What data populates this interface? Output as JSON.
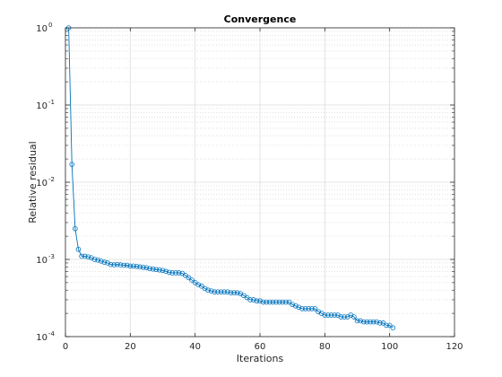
{
  "chart_data": {
    "type": "line",
    "title": "Convergence",
    "xlabel": "Iterations",
    "ylabel": "Relative residual",
    "xlim": [
      0,
      120
    ],
    "ylim": [
      0.0001,
      1
    ],
    "yscale": "log",
    "grid": true,
    "minor_grid": true,
    "marker": "circle",
    "line_color": "#0072BD",
    "x_ticks": [
      "0",
      "20",
      "40",
      "60",
      "80",
      "100",
      "120"
    ],
    "y_ticks": [
      {
        "base": "10",
        "exp": "-4"
      },
      {
        "base": "10",
        "exp": "-3"
      },
      {
        "base": "10",
        "exp": "-2"
      },
      {
        "base": "10",
        "exp": "-1"
      },
      {
        "base": "10",
        "exp": "0"
      }
    ],
    "series": [
      {
        "x": [
          1,
          2,
          3,
          4,
          5,
          6,
          7,
          8,
          9,
          10,
          11,
          12,
          13,
          14,
          15,
          16,
          17,
          18,
          19,
          20,
          21,
          22,
          23,
          24,
          25,
          26,
          27,
          28,
          29,
          30,
          31,
          32,
          33,
          34,
          35,
          36,
          37,
          38,
          39,
          40,
          41,
          42,
          43,
          44,
          45,
          46,
          47,
          48,
          49,
          50,
          51,
          52,
          53,
          54,
          55,
          56,
          57,
          58,
          59,
          60,
          61,
          62,
          63,
          64,
          65,
          66,
          67,
          68,
          69,
          70,
          71,
          72,
          73,
          74,
          75,
          76,
          77,
          78,
          79,
          80,
          81,
          82,
          83,
          84,
          85,
          86,
          87,
          88,
          89,
          90,
          91,
          92,
          93,
          94,
          95,
          96,
          97,
          98,
          99,
          100,
          101
        ],
        "y": [
          1.0,
          0.017,
          0.0025,
          0.00135,
          0.0011,
          0.0011,
          0.00108,
          0.00105,
          0.001,
          0.00098,
          0.00095,
          0.00092,
          0.0009,
          0.00086,
          0.00085,
          0.00086,
          0.00085,
          0.00084,
          0.00084,
          0.00082,
          0.00082,
          0.00081,
          0.0008,
          0.00079,
          0.00078,
          0.00076,
          0.00075,
          0.00074,
          0.00073,
          0.00072,
          0.0007,
          0.00068,
          0.00067,
          0.00067,
          0.00067,
          0.00066,
          0.00062,
          0.00058,
          0.00054,
          0.0005,
          0.00047,
          0.00045,
          0.00042,
          0.0004,
          0.00039,
          0.00038,
          0.00038,
          0.00038,
          0.00038,
          0.00038,
          0.00037,
          0.00037,
          0.00037,
          0.00036,
          0.00034,
          0.00032,
          0.0003,
          0.0003,
          0.00029,
          0.00029,
          0.00028,
          0.00028,
          0.00028,
          0.00028,
          0.00028,
          0.00028,
          0.00028,
          0.00028,
          0.00028,
          0.00026,
          0.00025,
          0.00024,
          0.00023,
          0.00023,
          0.00023,
          0.00023,
          0.00023,
          0.00021,
          0.0002,
          0.00019,
          0.00019,
          0.00019,
          0.00019,
          0.00019,
          0.00018,
          0.00018,
          0.00018,
          0.00019,
          0.00018,
          0.00016,
          0.00016,
          0.000155,
          0.000155,
          0.000155,
          0.000155,
          0.000155,
          0.00015,
          0.00015,
          0.00014,
          0.00014,
          0.00013
        ]
      }
    ]
  }
}
